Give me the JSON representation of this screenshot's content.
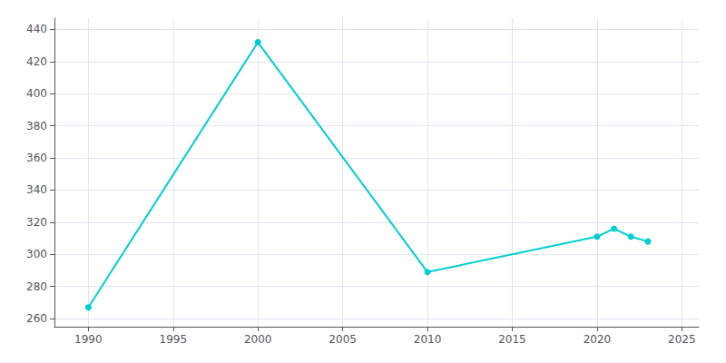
{
  "chart_data": {
    "type": "line",
    "x": [
      1990,
      2000,
      2010,
      2020,
      2021,
      2022,
      2023
    ],
    "values": [
      267,
      432,
      289,
      311,
      316,
      311,
      308
    ],
    "color": "#00CED1",
    "marker": "circle",
    "xlim": [
      1988,
      2026
    ],
    "xticks": [
      1990,
      1995,
      2000,
      2005,
      2010,
      2015,
      2020,
      2025
    ],
    "ylim": [
      255,
      447
    ],
    "yticks": [
      260,
      280,
      300,
      320,
      340,
      360,
      380,
      400,
      420,
      440
    ],
    "grid": true
  }
}
